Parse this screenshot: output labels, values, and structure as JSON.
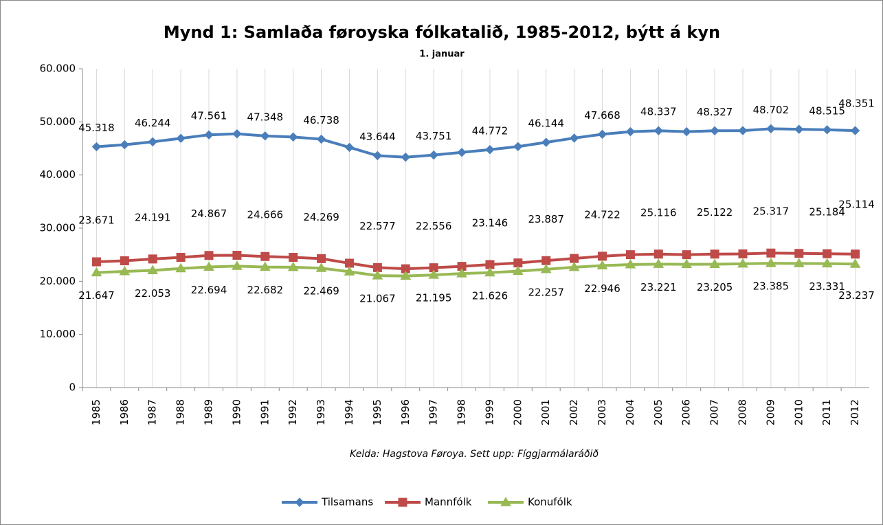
{
  "chart_data": {
    "type": "line",
    "title": "Mynd 1: Samlaða føroyska fólkatalið, 1985-2012, býtt á kyn",
    "subtitle": "1. januar",
    "source": "Kelda: Hagstova Føroya. Sett upp: Fíggjarmálaráðið",
    "categories": [
      "1985",
      "1986",
      "1987",
      "1988",
      "1989",
      "1990",
      "1991",
      "1992",
      "1993",
      "1994",
      "1995",
      "1996",
      "1997",
      "1998",
      "1999",
      "2000",
      "2001",
      "2002",
      "2003",
      "2004",
      "2005",
      "2006",
      "2007",
      "2008",
      "2009",
      "2010",
      "2011",
      "2012"
    ],
    "ylim": [
      0,
      60000
    ],
    "yticks": [
      0,
      {
        "value": 10000,
        "label": "10.000"
      },
      {
        "value": 20000,
        "label": "20.000"
      },
      {
        "value": 30000,
        "label": "30.000"
      },
      {
        "value": 40000,
        "label": "40.000"
      },
      {
        "value": 50000,
        "label": "50.000"
      },
      {
        "value": 60000,
        "label": "60.000"
      }
    ],
    "grid": "x",
    "legend": "bottom",
    "series": [
      {
        "name": "Tilsamans",
        "color": "#4a7ebb",
        "marker": "diamond",
        "values": [
          45318,
          45700,
          46244,
          46900,
          47561,
          47750,
          47348,
          47150,
          46738,
          45200,
          43644,
          43350,
          43751,
          44250,
          44772,
          45350,
          46144,
          46950,
          47668,
          48150,
          48337,
          48150,
          48327,
          48350,
          48702,
          48600,
          48515,
          48351
        ],
        "value_labels": [
          "45.318",
          null,
          "46.244",
          null,
          "47.561",
          null,
          "47.348",
          null,
          "46.738",
          null,
          "43.644",
          null,
          "43.751",
          null,
          "44.772",
          null,
          "46.144",
          null,
          "47.668",
          null,
          "48.337",
          null,
          "48.327",
          null,
          "48.702",
          null,
          "48.515",
          "48.351"
        ]
      },
      {
        "name": "Mannfólk",
        "color": "#be4b48",
        "marker": "square",
        "values": [
          23671,
          23850,
          24191,
          24500,
          24867,
          24900,
          24666,
          24500,
          24269,
          23400,
          22577,
          22350,
          22556,
          22800,
          23146,
          23450,
          23887,
          24300,
          24722,
          25000,
          25116,
          25000,
          25122,
          25150,
          25317,
          25250,
          25184,
          25114
        ],
        "value_labels": [
          "23.671",
          null,
          "24.191",
          null,
          "24.867",
          null,
          "24.666",
          null,
          "24.269",
          null,
          "22.577",
          null,
          "22.556",
          null,
          "23.146",
          null,
          "23.887",
          null,
          "24.722",
          null,
          "25.116",
          null,
          "25.122",
          null,
          "25.317",
          null,
          "25.184",
          "25.114"
        ]
      },
      {
        "name": "Konufólk",
        "color": "#98b954",
        "marker": "triangle",
        "values": [
          21647,
          21850,
          22053,
          22400,
          22694,
          22850,
          22682,
          22650,
          22469,
          21800,
          21067,
          21000,
          21195,
          21450,
          21626,
          21900,
          22257,
          22650,
          22946,
          23150,
          23221,
          23200,
          23205,
          23300,
          23385,
          23350,
          23331,
          23237
        ],
        "value_labels": [
          "21.647",
          null,
          "22.053",
          null,
          "22.694",
          null,
          "22.682",
          null,
          "22.469",
          null,
          "21.067",
          null,
          "21.195",
          null,
          "21.626",
          null,
          "22.257",
          null,
          "22.946",
          null,
          "23.221",
          null,
          "23.205",
          null,
          "23.385",
          null,
          "23.331",
          "23.237"
        ]
      }
    ]
  }
}
